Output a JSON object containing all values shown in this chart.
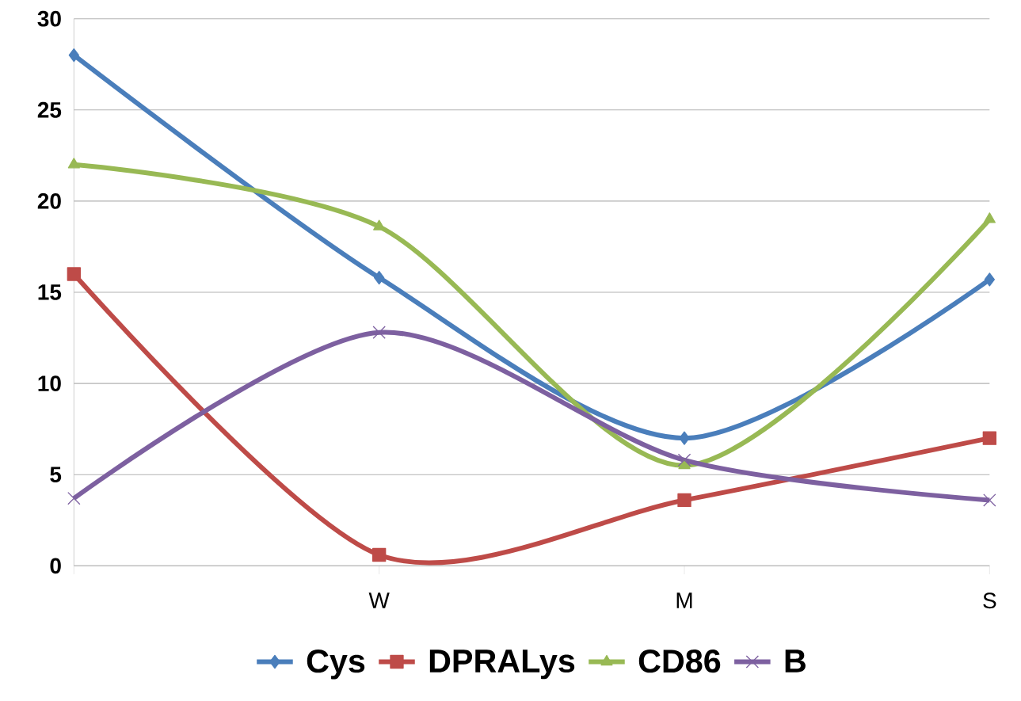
{
  "chart_data": {
    "type": "line",
    "categories": [
      null,
      "W",
      "M",
      "S"
    ],
    "series": [
      {
        "name": "Cys",
        "color": "#4a7ebb",
        "marker": "diamond",
        "values": [
          28,
          15.8,
          7,
          15.7
        ]
      },
      {
        "name": "DPRALys",
        "color": "#be4b48",
        "marker": "square",
        "values": [
          16,
          0.6,
          3.6,
          7
        ]
      },
      {
        "name": "CD86",
        "color": "#98b954",
        "marker": "triangle",
        "values": [
          22,
          18.6,
          5.5,
          19
        ]
      },
      {
        "name": "B",
        "color": "#7d60a0",
        "marker": "cross",
        "values": [
          3.7,
          12.8,
          5.8,
          3.6
        ]
      }
    ],
    "ylim": [
      0,
      30
    ],
    "yticks": [
      0,
      5,
      10,
      15,
      20,
      25,
      30
    ],
    "grid": "y",
    "legend": "bottom"
  }
}
